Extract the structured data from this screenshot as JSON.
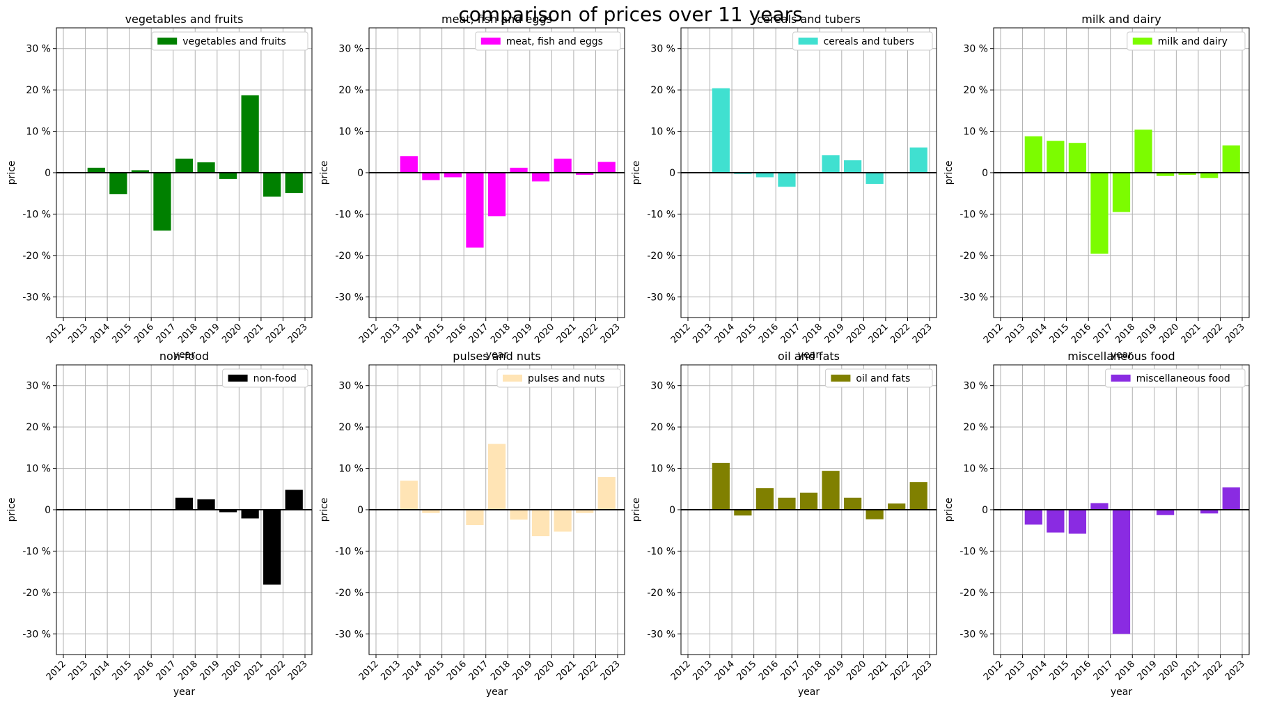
{
  "suptitle": "comparison of prices over 11 years",
  "chart_data": [
    {
      "type": "bar",
      "title": "vegetables and fruits",
      "legend": "vegetables and fruits",
      "color": "#008000",
      "xlabel": "year",
      "ylabel": "price",
      "categories": [
        "2013",
        "2014",
        "2015",
        "2016",
        "2017",
        "2018",
        "2019",
        "2020",
        "2021",
        "2022"
      ],
      "values": [
        1.2,
        -5.2,
        0.6,
        -14.0,
        3.4,
        2.5,
        -1.5,
        18.7,
        -5.8,
        -4.9
      ],
      "x_ticks": [
        "2012",
        "2013",
        "2014",
        "2015",
        "2016",
        "2017",
        "2018",
        "2019",
        "2020",
        "2021",
        "2022",
        "2023"
      ],
      "y_ticks": [
        "30 %",
        "20 %",
        "10 %",
        "0",
        "-10 %",
        "-20 %",
        "-30 %"
      ],
      "ylim": [
        -35,
        35
      ],
      "grid": true,
      "legend_position": "upper right"
    },
    {
      "type": "bar",
      "title": "meat, fish and eggs",
      "legend": "meat, fish and eggs",
      "color": "#ff00ff",
      "xlabel": "year",
      "ylabel": "price",
      "categories": [
        "2013",
        "2014",
        "2015",
        "2016",
        "2017",
        "2018",
        "2019",
        "2020",
        "2021",
        "2022"
      ],
      "values": [
        4.0,
        -1.8,
        -1.1,
        -18.1,
        -10.5,
        1.2,
        -2.1,
        3.4,
        -0.5,
        2.6
      ],
      "x_ticks": [
        "2012",
        "2013",
        "2014",
        "2015",
        "2016",
        "2017",
        "2018",
        "2019",
        "2020",
        "2021",
        "2022",
        "2023"
      ],
      "y_ticks": [
        "30 %",
        "20 %",
        "10 %",
        "0",
        "-10 %",
        "-20 %",
        "-30 %"
      ],
      "ylim": [
        -35,
        35
      ],
      "grid": true,
      "legend_position": "upper right"
    },
    {
      "type": "bar",
      "title": "cereals and tubers",
      "legend": "cereals and tubers",
      "color": "#40e0d0",
      "xlabel": "year",
      "ylabel": "price",
      "categories": [
        "2013",
        "2014",
        "2015",
        "2016",
        "2017",
        "2018",
        "2019",
        "2020",
        "2021",
        "2022"
      ],
      "values": [
        20.4,
        -0.3,
        -1.1,
        -3.4,
        0,
        4.2,
        3.0,
        -2.7,
        0,
        6.1
      ],
      "x_ticks": [
        "2012",
        "2013",
        "2014",
        "2015",
        "2016",
        "2017",
        "2018",
        "2019",
        "2020",
        "2021",
        "2022",
        "2023"
      ],
      "y_ticks": [
        "30 %",
        "20 %",
        "10 %",
        "0",
        "-10 %",
        "-20 %",
        "-30 %"
      ],
      "ylim": [
        -35,
        35
      ],
      "grid": true,
      "legend_position": "upper right"
    },
    {
      "type": "bar",
      "title": "milk and dairy",
      "legend": "milk and dairy",
      "color": "#7cfc00",
      "xlabel": "year",
      "ylabel": "price",
      "categories": [
        "2013",
        "2014",
        "2015",
        "2016",
        "2017",
        "2018",
        "2019",
        "2020",
        "2021",
        "2022"
      ],
      "values": [
        8.8,
        7.7,
        7.2,
        -19.6,
        -9.5,
        10.4,
        -0.8,
        -0.5,
        -1.3,
        6.6
      ],
      "x_ticks": [
        "2012",
        "2013",
        "2014",
        "2015",
        "2016",
        "2017",
        "2018",
        "2019",
        "2020",
        "2021",
        "2022",
        "2023"
      ],
      "y_ticks": [
        "30 %",
        "20 %",
        "10 %",
        "0",
        "-10 %",
        "-20 %",
        "-30 %"
      ],
      "ylim": [
        -35,
        35
      ],
      "grid": true,
      "legend_position": "upper right"
    },
    {
      "type": "bar",
      "title": "non-food",
      "legend": "non-food",
      "color": "#000000",
      "xlabel": "year",
      "ylabel": "price",
      "categories": [
        "2013",
        "2014",
        "2015",
        "2016",
        "2017",
        "2018",
        "2019",
        "2020",
        "2021",
        "2022"
      ],
      "values": [
        0,
        0,
        0,
        0,
        2.9,
        2.5,
        -0.6,
        -2.1,
        -18.1,
        4.8
      ],
      "x_ticks": [
        "2012",
        "2013",
        "2014",
        "2015",
        "2016",
        "2017",
        "2018",
        "2019",
        "2020",
        "2021",
        "2022",
        "2023"
      ],
      "y_ticks": [
        "30 %",
        "20 %",
        "10 %",
        "0",
        "-10 %",
        "-20 %",
        "-30 %"
      ],
      "ylim": [
        -35,
        35
      ],
      "grid": true,
      "legend_position": "upper right"
    },
    {
      "type": "bar",
      "title": "pulses and nuts",
      "legend": "pulses and nuts",
      "color": "#ffe4b5",
      "xlabel": "year",
      "ylabel": "price",
      "categories": [
        "2013",
        "2014",
        "2015",
        "2016",
        "2017",
        "2018",
        "2019",
        "2020",
        "2021",
        "2022"
      ],
      "values": [
        7.0,
        -0.8,
        0,
        -3.7,
        15.9,
        -2.4,
        -6.4,
        -5.3,
        -0.8,
        7.9
      ],
      "x_ticks": [
        "2012",
        "2013",
        "2014",
        "2015",
        "2016",
        "2017",
        "2018",
        "2019",
        "2020",
        "2021",
        "2022",
        "2023"
      ],
      "y_ticks": [
        "30 %",
        "20 %",
        "10 %",
        "0",
        "-10 %",
        "-20 %",
        "-30 %"
      ],
      "ylim": [
        -35,
        35
      ],
      "grid": true,
      "legend_position": "upper right"
    },
    {
      "type": "bar",
      "title": "oil and fats",
      "legend": "oil and fats",
      "color": "#808000",
      "xlabel": "year",
      "ylabel": "price",
      "categories": [
        "2013",
        "2014",
        "2015",
        "2016",
        "2017",
        "2018",
        "2019",
        "2020",
        "2021",
        "2022"
      ],
      "values": [
        11.3,
        -1.4,
        5.2,
        2.9,
        4.1,
        9.4,
        2.9,
        -2.3,
        1.5,
        6.7
      ],
      "x_ticks": [
        "2012",
        "2013",
        "2014",
        "2015",
        "2016",
        "2017",
        "2018",
        "2019",
        "2020",
        "2021",
        "2022",
        "2023"
      ],
      "y_ticks": [
        "30 %",
        "20 %",
        "10 %",
        "0",
        "-10 %",
        "-20 %",
        "-30 %"
      ],
      "ylim": [
        -35,
        35
      ],
      "grid": true,
      "legend_position": "upper right"
    },
    {
      "type": "bar",
      "title": "miscellaneous food",
      "legend": "miscellaneous food",
      "color": "#8a2be2",
      "xlabel": "year",
      "ylabel": "price",
      "categories": [
        "2013",
        "2014",
        "2015",
        "2016",
        "2017",
        "2018",
        "2019",
        "2020",
        "2021",
        "2022"
      ],
      "values": [
        -3.6,
        -5.5,
        -5.8,
        1.6,
        -30.0,
        0,
        -1.3,
        0,
        -0.9,
        5.4
      ],
      "x_ticks": [
        "2012",
        "2013",
        "2014",
        "2015",
        "2016",
        "2017",
        "2018",
        "2019",
        "2020",
        "2021",
        "2022",
        "2023"
      ],
      "y_ticks": [
        "30 %",
        "20 %",
        "10 %",
        "0",
        "-10 %",
        "-20 %",
        "-30 %"
      ],
      "ylim": [
        -35,
        35
      ],
      "grid": true,
      "legend_position": "upper right"
    }
  ]
}
